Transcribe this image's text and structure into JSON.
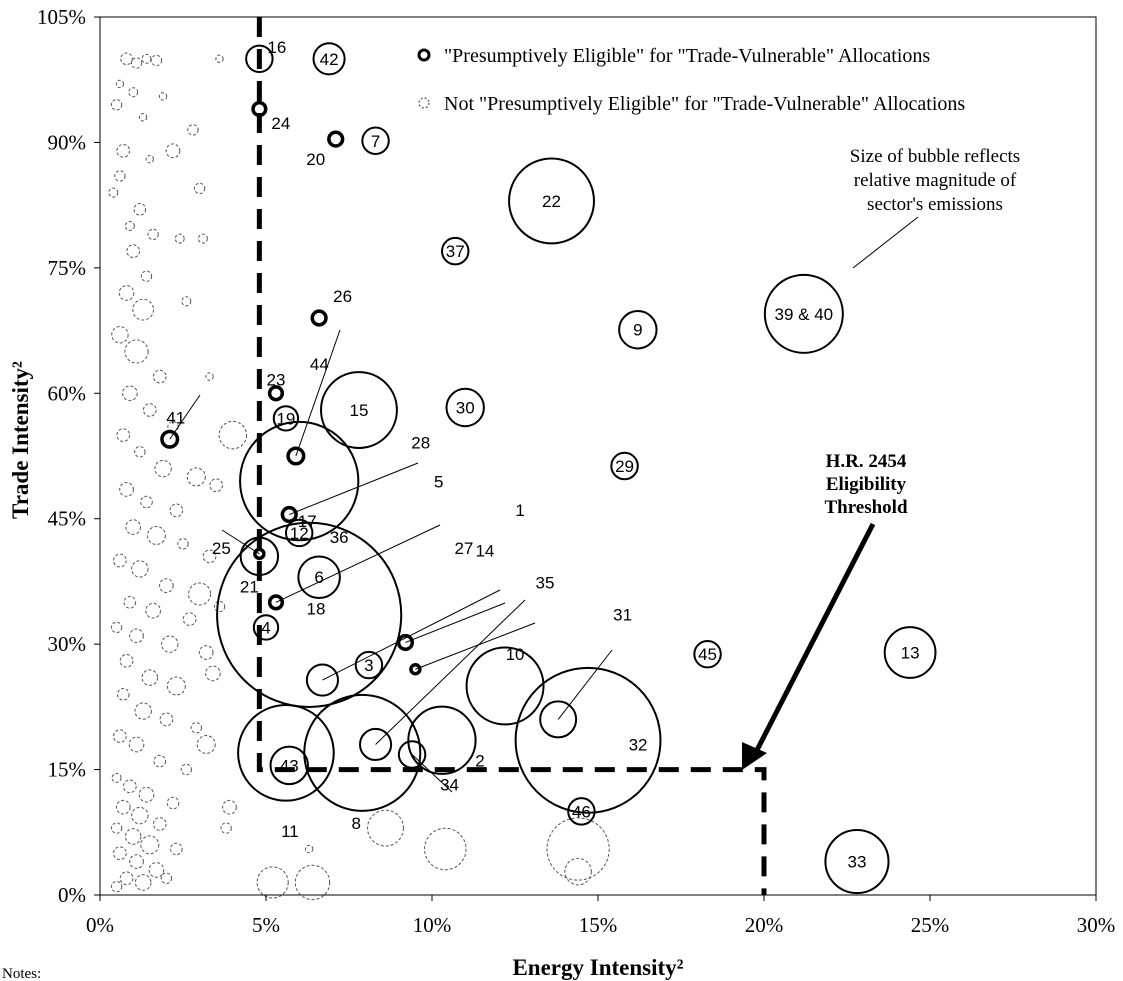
{
  "chart_data": {
    "type": "scatter",
    "subtype": "bubble",
    "xlabel": "Energy Intensity²",
    "ylabel": "Trade Intensity²",
    "xlim": [
      0,
      30
    ],
    "ylim": [
      0,
      105
    ],
    "x_ticks": [
      "0%",
      "5%",
      "10%",
      "15%",
      "20%",
      "25%",
      "30%"
    ],
    "y_ticks": [
      "0%",
      "15%",
      "30%",
      "45%",
      "60%",
      "75%",
      "90%",
      "105%"
    ],
    "x_tick_values": [
      0,
      5,
      10,
      15,
      20,
      25,
      30
    ],
    "y_tick_values": [
      0,
      15,
      30,
      45,
      60,
      75,
      90,
      105
    ],
    "grid": false,
    "legend_position": "top-right",
    "legend": [
      "\"Presumptively Eligible\"  for \"Trade-Vulnerable\" Allocations",
      "Not \"Presumptively Eligible\"  for \"Trade-Vulnerable\" Allocations"
    ],
    "colors": {
      "eligible": "#000000",
      "not_eligible": "#555555",
      "threshold": "#000000"
    },
    "threshold": {
      "x": [
        4.8,
        20
      ],
      "y": [
        105,
        15
      ]
    },
    "annotations": {
      "bubble_note": [
        "Size of bubble reflects",
        "relative magnitude of",
        "sector's emissions"
      ],
      "threshold_label": [
        "H.R. 2454",
        "Eligibility",
        "Threshold"
      ],
      "notes": "Notes:"
    },
    "series": [
      {
        "name": "\"Presumptively Eligible\"  for \"Trade-Vulnerable\" Allocations",
        "points": [
          {
            "label": "16",
            "x": 4.8,
            "y": 100.0,
            "size": 1.3
          },
          {
            "label": "42",
            "x": 6.9,
            "y": 100.0,
            "size": 1.8
          },
          {
            "label": "24",
            "x": 4.8,
            "y": 94.0,
            "size": 0.3
          },
          {
            "label": "20",
            "x": 7.1,
            "y": 90.4,
            "size": 0.35
          },
          {
            "label": "7",
            "x": 8.3,
            "y": 90.2,
            "size": 1.3
          },
          {
            "label": "22",
            "x": 13.6,
            "y": 83.0,
            "size": 13.4
          },
          {
            "label": "37",
            "x": 10.7,
            "y": 77.0,
            "size": 1.3
          },
          {
            "label": "26",
            "x": 6.6,
            "y": 69.0,
            "size": 0.35
          },
          {
            "label": "9",
            "x": 16.2,
            "y": 67.6,
            "size": 2.6
          },
          {
            "label": "39 & 40",
            "x": 21.2,
            "y": 69.5,
            "size": 11.3
          },
          {
            "label": "23",
            "x": 5.3,
            "y": 60.0,
            "size": 0.3
          },
          {
            "label": "15",
            "x": 7.8,
            "y": 58.0,
            "size": 10.7
          },
          {
            "label": "30",
            "x": 11.0,
            "y": 58.3,
            "size": 2.6
          },
          {
            "label": "19",
            "x": 5.6,
            "y": 57.0,
            "size": 1.1
          },
          {
            "label": "44",
            "x": 5.9,
            "y": 52.5,
            "size": 0.45
          },
          {
            "label": "41",
            "x": 2.1,
            "y": 54.5,
            "size": 0.45
          },
          {
            "label": "29",
            "x": 15.8,
            "y": 51.3,
            "size": 1.3
          },
          {
            "label": "17",
            "x": 6.0,
            "y": 49.5,
            "size": 26.0
          },
          {
            "label": "28",
            "x": 5.7,
            "y": 45.5,
            "size": 0.35
          },
          {
            "label": "12",
            "x": 6.0,
            "y": 43.3,
            "size": 1.3
          },
          {
            "label": "25",
            "x": 4.8,
            "y": 40.8,
            "size": 0.15
          },
          {
            "label": "21",
            "x": 4.8,
            "y": 40.5,
            "size": 2.6
          },
          {
            "label": "6",
            "x": 6.6,
            "y": 38.0,
            "size": 3.2
          },
          {
            "label": "18",
            "x": 5.3,
            "y": 35.0,
            "size": 0.3
          },
          {
            "label": "36",
            "x": 6.3,
            "y": 33.5,
            "size": 63.0
          },
          {
            "label": "4",
            "x": 5.0,
            "y": 32.0,
            "size": 1.1
          },
          {
            "label": "14",
            "x": 9.2,
            "y": 30.2,
            "size": 0.35
          },
          {
            "label": "1",
            "x": 9.5,
            "y": 27.0,
            "size": 0.15
          },
          {
            "label": "3",
            "x": 8.1,
            "y": 27.5,
            "size": 1.3
          },
          {
            "label": "27",
            "x": 6.7,
            "y": 25.7,
            "size": 1.8
          },
          {
            "label": "10",
            "x": 12.2,
            "y": 25.0,
            "size": 11.0
          },
          {
            "label": "35",
            "x": 8.3,
            "y": 18.0,
            "size": 1.8
          },
          {
            "label": "31",
            "x": 13.8,
            "y": 21.0,
            "size": 2.4
          },
          {
            "label": "45",
            "x": 18.3,
            "y": 28.8,
            "size": 1.3
          },
          {
            "label": "13",
            "x": 24.4,
            "y": 29.0,
            "size": 4.8
          },
          {
            "label": "32",
            "x": 14.7,
            "y": 18.5,
            "size": 39.0
          },
          {
            "label": "2",
            "x": 10.3,
            "y": 18.5,
            "size": 8.4
          },
          {
            "label": "34",
            "x": 9.4,
            "y": 16.8,
            "size": 1.3
          },
          {
            "label": "8",
            "x": 7.9,
            "y": 17.0,
            "size": 25.0
          },
          {
            "label": "11",
            "x": 5.6,
            "y": 17.0,
            "size": 17.0
          },
          {
            "label": "43",
            "x": 5.7,
            "y": 15.5,
            "size": 2.6
          },
          {
            "label": "46",
            "x": 14.5,
            "y": 10.0,
            "size": 1.3
          },
          {
            "label": "33",
            "x": 22.8,
            "y": 4.0,
            "size": 7.4
          }
        ]
      },
      {
        "name": "Not \"Presumptively Eligible\"  for \"Trade-Vulnerable\" Allocations",
        "points": [
          {
            "x": 0.8,
            "y": 100,
            "size": 0.25
          },
          {
            "x": 1.1,
            "y": 99.5,
            "size": 0.2
          },
          {
            "x": 1.4,
            "y": 100,
            "size": 0.15
          },
          {
            "x": 1.7,
            "y": 99.8,
            "size": 0.2
          },
          {
            "x": 0.6,
            "y": 97,
            "size": 0.1
          },
          {
            "x": 1.0,
            "y": 96,
            "size": 0.15
          },
          {
            "x": 1.9,
            "y": 95.5,
            "size": 0.1
          },
          {
            "x": 0.5,
            "y": 94.5,
            "size": 0.2
          },
          {
            "x": 1.3,
            "y": 93,
            "size": 0.1
          },
          {
            "x": 2.8,
            "y": 91.5,
            "size": 0.2
          },
          {
            "x": 2.2,
            "y": 89,
            "size": 0.35
          },
          {
            "x": 0.7,
            "y": 89,
            "size": 0.3
          },
          {
            "x": 1.5,
            "y": 88,
            "size": 0.1
          },
          {
            "x": 0.6,
            "y": 86,
            "size": 0.2
          },
          {
            "x": 3.0,
            "y": 84.5,
            "size": 0.2
          },
          {
            "x": 0.4,
            "y": 84,
            "size": 0.15
          },
          {
            "x": 1.2,
            "y": 82,
            "size": 0.25
          },
          {
            "x": 0.9,
            "y": 80,
            "size": 0.15
          },
          {
            "x": 1.6,
            "y": 79,
            "size": 0.2
          },
          {
            "x": 2.4,
            "y": 78.5,
            "size": 0.15
          },
          {
            "x": 3.1,
            "y": 78.5,
            "size": 0.15
          },
          {
            "x": 1.0,
            "y": 77,
            "size": 0.3
          },
          {
            "x": 1.4,
            "y": 74,
            "size": 0.2
          },
          {
            "x": 0.8,
            "y": 72,
            "size": 0.4
          },
          {
            "x": 1.3,
            "y": 70,
            "size": 0.8
          },
          {
            "x": 2.6,
            "y": 71,
            "size": 0.15
          },
          {
            "x": 0.6,
            "y": 67,
            "size": 0.5
          },
          {
            "x": 1.1,
            "y": 65,
            "size": 1.0
          },
          {
            "x": 1.8,
            "y": 62,
            "size": 0.3
          },
          {
            "x": 3.3,
            "y": 62,
            "size": 0.1
          },
          {
            "x": 0.9,
            "y": 60,
            "size": 0.4
          },
          {
            "x": 1.5,
            "y": 58,
            "size": 0.3
          },
          {
            "x": 2.2,
            "y": 56,
            "size": 0.2
          },
          {
            "x": 4.0,
            "y": 55,
            "size": 1.4
          },
          {
            "x": 0.7,
            "y": 55,
            "size": 0.3
          },
          {
            "x": 1.2,
            "y": 53,
            "size": 0.2
          },
          {
            "x": 1.9,
            "y": 51,
            "size": 0.5
          },
          {
            "x": 2.9,
            "y": 50,
            "size": 0.6
          },
          {
            "x": 3.5,
            "y": 49,
            "size": 0.3
          },
          {
            "x": 0.8,
            "y": 48.5,
            "size": 0.35
          },
          {
            "x": 1.4,
            "y": 47,
            "size": 0.25
          },
          {
            "x": 2.3,
            "y": 46,
            "size": 0.3
          },
          {
            "x": 1.0,
            "y": 44,
            "size": 0.4
          },
          {
            "x": 1.7,
            "y": 43,
            "size": 0.6
          },
          {
            "x": 2.5,
            "y": 42,
            "size": 0.2
          },
          {
            "x": 3.3,
            "y": 40.5,
            "size": 0.3
          },
          {
            "x": 0.6,
            "y": 40,
            "size": 0.3
          },
          {
            "x": 1.2,
            "y": 39,
            "size": 0.5
          },
          {
            "x": 2.0,
            "y": 37,
            "size": 0.35
          },
          {
            "x": 3.0,
            "y": 36,
            "size": 0.9
          },
          {
            "x": 0.9,
            "y": 35,
            "size": 0.25
          },
          {
            "x": 1.6,
            "y": 34,
            "size": 0.4
          },
          {
            "x": 2.7,
            "y": 33,
            "size": 0.3
          },
          {
            "x": 3.6,
            "y": 34.5,
            "size": 0.2
          },
          {
            "x": 0.5,
            "y": 32,
            "size": 0.2
          },
          {
            "x": 1.1,
            "y": 31,
            "size": 0.35
          },
          {
            "x": 2.1,
            "y": 30,
            "size": 0.5
          },
          {
            "x": 3.2,
            "y": 29,
            "size": 0.35
          },
          {
            "x": 0.8,
            "y": 28,
            "size": 0.3
          },
          {
            "x": 1.5,
            "y": 26,
            "size": 0.45
          },
          {
            "x": 2.3,
            "y": 25,
            "size": 0.6
          },
          {
            "x": 3.4,
            "y": 26.5,
            "size": 0.4
          },
          {
            "x": 0.7,
            "y": 24,
            "size": 0.25
          },
          {
            "x": 1.3,
            "y": 22,
            "size": 0.5
          },
          {
            "x": 2.0,
            "y": 21,
            "size": 0.3
          },
          {
            "x": 2.9,
            "y": 20,
            "size": 0.2
          },
          {
            "x": 0.6,
            "y": 19,
            "size": 0.3
          },
          {
            "x": 1.1,
            "y": 18,
            "size": 0.4
          },
          {
            "x": 1.8,
            "y": 16,
            "size": 0.25
          },
          {
            "x": 2.6,
            "y": 15,
            "size": 0.2
          },
          {
            "x": 0.5,
            "y": 14,
            "size": 0.15
          },
          {
            "x": 0.9,
            "y": 13,
            "size": 0.3
          },
          {
            "x": 1.4,
            "y": 12,
            "size": 0.4
          },
          {
            "x": 2.2,
            "y": 11,
            "size": 0.25
          },
          {
            "x": 0.7,
            "y": 10.5,
            "size": 0.35
          },
          {
            "x": 1.2,
            "y": 9.5,
            "size": 0.5
          },
          {
            "x": 1.8,
            "y": 8.5,
            "size": 0.3
          },
          {
            "x": 0.5,
            "y": 8,
            "size": 0.2
          },
          {
            "x": 1.0,
            "y": 7,
            "size": 0.45
          },
          {
            "x": 1.5,
            "y": 6,
            "size": 0.6
          },
          {
            "x": 2.3,
            "y": 5.5,
            "size": 0.25
          },
          {
            "x": 0.6,
            "y": 5,
            "size": 0.3
          },
          {
            "x": 1.1,
            "y": 4,
            "size": 0.35
          },
          {
            "x": 1.7,
            "y": 3,
            "size": 0.4
          },
          {
            "x": 0.8,
            "y": 2,
            "size": 0.3
          },
          {
            "x": 1.3,
            "y": 1.5,
            "size": 0.45
          },
          {
            "x": 0.5,
            "y": 1,
            "size": 0.2
          },
          {
            "x": 2.0,
            "y": 2,
            "size": 0.2
          },
          {
            "x": 3.6,
            "y": 100,
            "size": 0.1
          },
          {
            "x": 3.9,
            "y": 10.5,
            "size": 0.35
          },
          {
            "x": 3.8,
            "y": 8,
            "size": 0.2
          },
          {
            "x": 3.2,
            "y": 18,
            "size": 0.6
          },
          {
            "x": 5.2,
            "y": 1.5,
            "size": 1.8
          },
          {
            "x": 6.4,
            "y": 1.5,
            "size": 2.2
          },
          {
            "x": 8.6,
            "y": 8,
            "size": 2.4
          },
          {
            "x": 6.3,
            "y": 5.5,
            "size": 0.1
          },
          {
            "x": 10.4,
            "y": 5.5,
            "size": 3.2
          },
          {
            "x": 14.4,
            "y": 5.5,
            "size": 7.2
          },
          {
            "x": 14.4,
            "y": 2.8,
            "size": 1.3
          }
        ]
      }
    ]
  }
}
